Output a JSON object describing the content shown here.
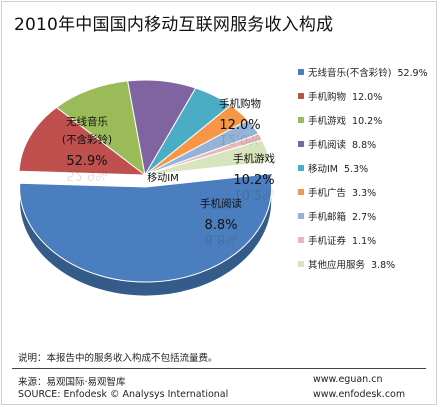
{
  "chart_data": {
    "type": "pie",
    "title": "2010年中国国内移动互联网服务收入构成",
    "legend_position": "right",
    "series": [
      {
        "name": "无线音乐(不含彩铃)",
        "value": 52.9,
        "label": "52.9%",
        "color": "#4a7ebf"
      },
      {
        "name": "手机购物",
        "value": 12.0,
        "label": "12.0%",
        "color": "#c0504d"
      },
      {
        "name": "手机游戏",
        "value": 10.2,
        "label": "10.2%",
        "color": "#9bbb59"
      },
      {
        "name": "手机阅读",
        "value": 8.8,
        "label": "8.8%",
        "color": "#8064a2"
      },
      {
        "name": "移动IM",
        "value": 5.3,
        "label": "5.3%",
        "color": "#4bacc6"
      },
      {
        "name": "手机广告",
        "value": 3.3,
        "label": "3.3%",
        "color": "#f79646"
      },
      {
        "name": "手机邮箱",
        "value": 2.7,
        "label": "2.7%",
        "color": "#95b3d7"
      },
      {
        "name": "手机证券",
        "value": 1.1,
        "label": "1.1%",
        "color": "#e6b9b8"
      },
      {
        "name": "其他应用服务",
        "value": 3.8,
        "label": "3.8%",
        "color": "#d7e4bd"
      }
    ],
    "slice_labels": [
      {
        "series": "无线音乐(不含彩铃)",
        "lines": [
          "无线音乐",
          "(不含彩铃)"
        ],
        "value": "52.9%"
      },
      {
        "series": "手机购物",
        "lines": [
          "手机购物"
        ],
        "value": "12.0%"
      },
      {
        "series": "手机游戏",
        "lines": [
          "手机游戏"
        ],
        "value": "10.2%"
      },
      {
        "series": "手机阅读",
        "lines": [
          "手机阅读"
        ],
        "value": "8.8%"
      },
      {
        "series": "移动IM",
        "lines": [
          "移动IM"
        ],
        "value": ""
      }
    ]
  },
  "note": "说明：本报告中的服务收入构成不包括流量费。",
  "footer": {
    "source_cn": "来源：易观国际·易观智库",
    "source_en": "SOURCE: Enfodesk © Analysys International",
    "url1": "www.eguan.cn",
    "url2": "www.enfodesk.com"
  }
}
